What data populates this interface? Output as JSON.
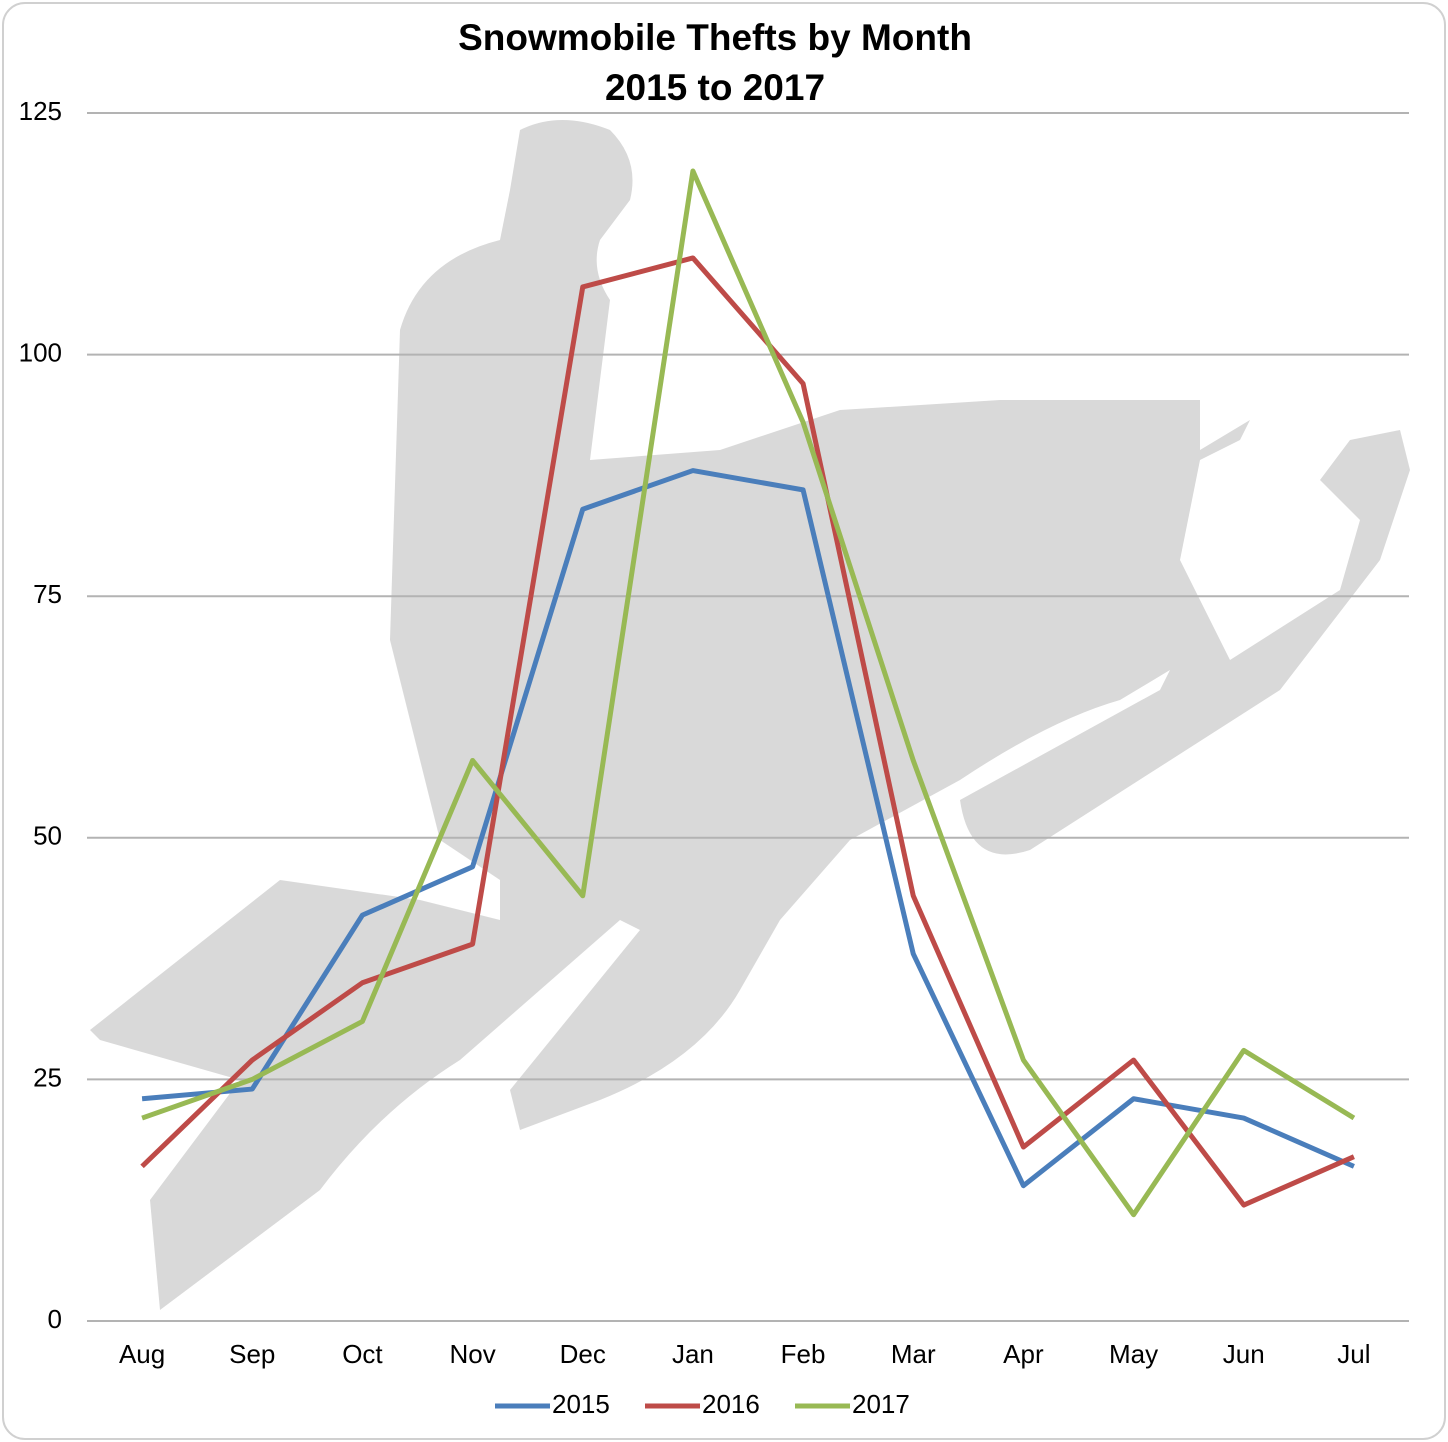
{
  "chart_data": {
    "type": "line",
    "title": "Snowmobile Thefts by Month",
    "subtitle": "2015 to 2017",
    "categories": [
      "Aug",
      "Sep",
      "Oct",
      "Nov",
      "Dec",
      "Jan",
      "Feb",
      "Mar",
      "Apr",
      "May",
      "Jun",
      "Jul"
    ],
    "series": [
      {
        "name": "2015",
        "color": "#4a7ebb",
        "values": [
          23,
          24,
          42,
          47,
          84,
          88,
          86,
          38,
          14,
          23,
          21,
          16
        ]
      },
      {
        "name": "2016",
        "color": "#be4b48",
        "values": [
          16,
          27,
          35,
          39,
          107,
          110,
          97,
          44,
          18,
          27,
          12,
          17
        ]
      },
      {
        "name": "2017",
        "color": "#98b954",
        "values": [
          21,
          25,
          31,
          58,
          44,
          119,
          93,
          58,
          27,
          11,
          28,
          21
        ]
      }
    ],
    "ylim": [
      0,
      125
    ],
    "yticks": [
      0,
      25,
      50,
      75,
      100,
      125
    ],
    "grid": true,
    "legend": "bottom"
  }
}
